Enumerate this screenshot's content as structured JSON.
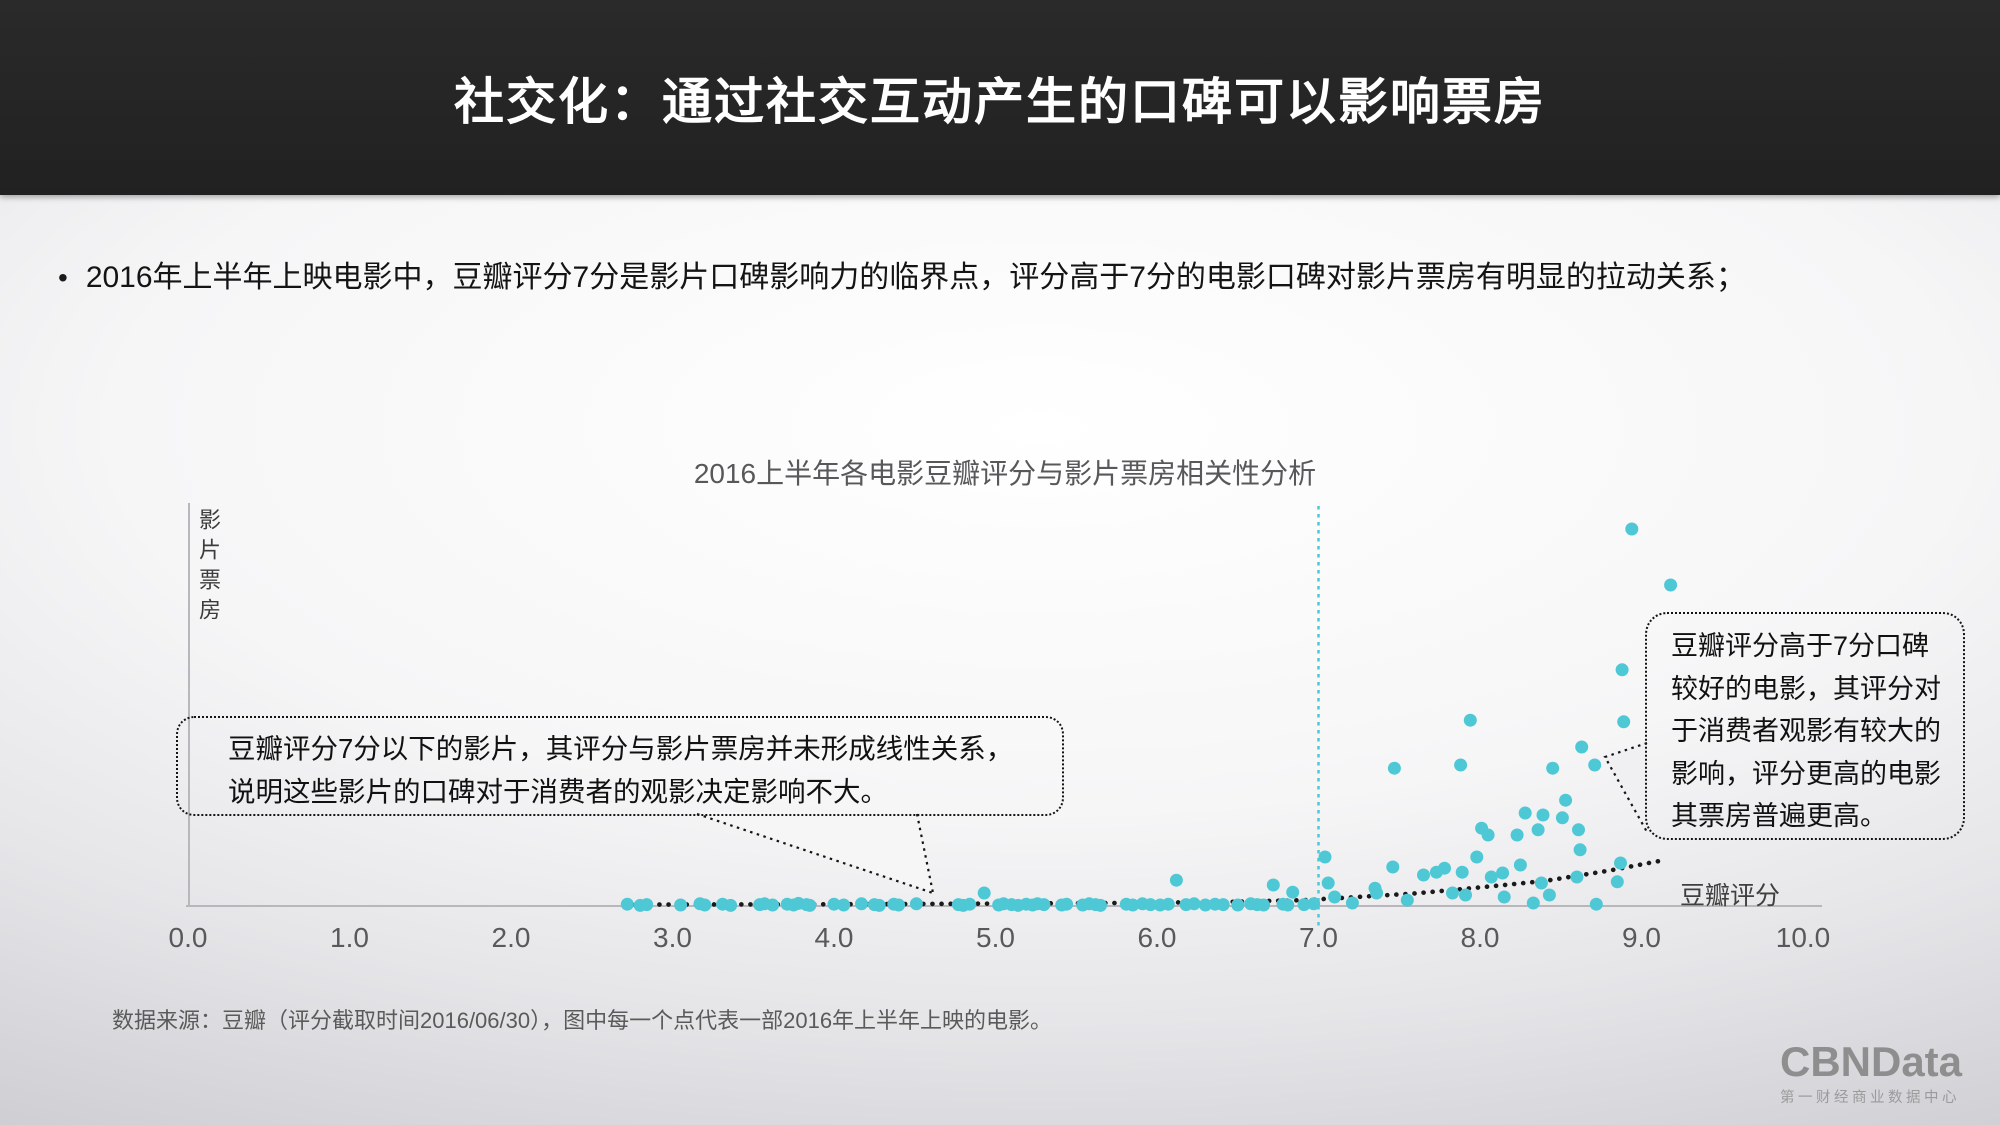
{
  "header": {
    "title": "社交化：通过社交互动产生的口碑可以影响票房",
    "bg_color": "#262626",
    "text_color": "#ffffff"
  },
  "bullet": {
    "marker": "•",
    "text": "2016年上半年上映电影中，豆瓣评分7分是影片口碑影响力的临界点，评分高于7分的电影口碑对影片票房有明显的拉动关系；"
  },
  "chart_data": {
    "type": "scatter",
    "title": "2016上半年各电影豆瓣评分与影片票房相关性分析",
    "xlabel": "豆瓣评分",
    "ylabel": "影片票房",
    "x_ticks": [
      "0.0",
      "1.0",
      "2.0",
      "3.0",
      "4.0",
      "5.0",
      "6.0",
      "7.0",
      "8.0",
      "9.0",
      "10.0"
    ],
    "xlim": [
      0,
      10.4
    ],
    "ylim": [
      0,
      105
    ],
    "grid": false,
    "legend": "none",
    "threshold_x": 7.0,
    "point_color": "#4fc8d5",
    "threshold_color": "#4fc8d5",
    "trend_color": "#1a1a1a",
    "axis_color": "#b8b8bc",
    "points": [
      [
        2.72,
        0.2
      ],
      [
        2.8,
        -0.1
      ],
      [
        2.84,
        0.1
      ],
      [
        3.05,
        0
      ],
      [
        3.17,
        0.3
      ],
      [
        3.2,
        0
      ],
      [
        3.31,
        0.2
      ],
      [
        3.36,
        -0.1
      ],
      [
        3.54,
        0.1
      ],
      [
        3.57,
        0.3
      ],
      [
        3.62,
        0
      ],
      [
        3.71,
        0.2
      ],
      [
        3.75,
        0
      ],
      [
        3.78,
        0.4
      ],
      [
        3.83,
        0.1
      ],
      [
        3.85,
        -0.1
      ],
      [
        4.0,
        0.2
      ],
      [
        4.06,
        0
      ],
      [
        4.17,
        0.3
      ],
      [
        4.25,
        0.1
      ],
      [
        4.28,
        -0.1
      ],
      [
        4.37,
        0.2
      ],
      [
        4.4,
        0
      ],
      [
        4.51,
        0.3
      ],
      [
        4.77,
        0.1
      ],
      [
        4.8,
        -0.1
      ],
      [
        4.84,
        0.2
      ],
      [
        4.93,
        3
      ],
      [
        5.02,
        0
      ],
      [
        5.05,
        0.3
      ],
      [
        5.1,
        0.1
      ],
      [
        5.14,
        -0.1
      ],
      [
        5.19,
        0.2
      ],
      [
        5.23,
        0
      ],
      [
        5.26,
        0.3
      ],
      [
        5.3,
        0.1
      ],
      [
        5.41,
        0
      ],
      [
        5.44,
        0.2
      ],
      [
        5.54,
        0
      ],
      [
        5.58,
        0.3
      ],
      [
        5.62,
        0.1
      ],
      [
        5.65,
        -0.1
      ],
      [
        5.81,
        0.2
      ],
      [
        5.85,
        0
      ],
      [
        5.91,
        0.3
      ],
      [
        5.96,
        0.1
      ],
      [
        6.02,
        0
      ],
      [
        6.07,
        0.2
      ],
      [
        6.12,
        6.2
      ],
      [
        6.18,
        0.1
      ],
      [
        6.23,
        0.3
      ],
      [
        6.3,
        0
      ],
      [
        6.36,
        0.2
      ],
      [
        6.41,
        0.1
      ],
      [
        6.5,
        0
      ],
      [
        6.58,
        0.3
      ],
      [
        6.62,
        0.1
      ],
      [
        6.66,
        0
      ],
      [
        6.72,
        5
      ],
      [
        6.78,
        0.2
      ],
      [
        6.81,
        0
      ],
      [
        6.84,
        3.2
      ],
      [
        6.91,
        0.1
      ],
      [
        6.97,
        0.3
      ],
      [
        7.04,
        12
      ],
      [
        7.06,
        5.5
      ],
      [
        7.1,
        2
      ],
      [
        7.21,
        0.5
      ],
      [
        7.35,
        4.2
      ],
      [
        7.36,
        3
      ],
      [
        7.46,
        9.5
      ],
      [
        7.47,
        34.2
      ],
      [
        7.55,
        1.2
      ],
      [
        7.65,
        7.5
      ],
      [
        7.73,
        8.2
      ],
      [
        7.78,
        9.2
      ],
      [
        7.83,
        3
      ],
      [
        7.88,
        35
      ],
      [
        7.89,
        8.2
      ],
      [
        7.91,
        2.5
      ],
      [
        7.94,
        46.2
      ],
      [
        7.98,
        12
      ],
      [
        8.01,
        19.2
      ],
      [
        8.05,
        17.5
      ],
      [
        8.07,
        7
      ],
      [
        8.14,
        8
      ],
      [
        8.15,
        2
      ],
      [
        8.23,
        17.5
      ],
      [
        8.25,
        10
      ],
      [
        8.28,
        23
      ],
      [
        8.33,
        0.5
      ],
      [
        8.36,
        18.8
      ],
      [
        8.38,
        5.5
      ],
      [
        8.39,
        22.5
      ],
      [
        8.43,
        2.5
      ],
      [
        8.45,
        34.2
      ],
      [
        8.51,
        21.8
      ],
      [
        8.53,
        26.2
      ],
      [
        8.6,
        7
      ],
      [
        8.61,
        18.8
      ],
      [
        8.62,
        13.8
      ],
      [
        8.63,
        39.5
      ],
      [
        8.71,
        35
      ],
      [
        8.72,
        0.2
      ],
      [
        8.85,
        5.8
      ],
      [
        8.87,
        10.5
      ],
      [
        8.88,
        58.8
      ],
      [
        8.89,
        45.8
      ],
      [
        8.94,
        94
      ],
      [
        9.18,
        80
      ]
    ],
    "trend": [
      [
        2.75,
        0.1
      ],
      [
        3.5,
        0.15
      ],
      [
        4.2,
        0.2
      ],
      [
        5.0,
        0.35
      ],
      [
        5.8,
        0.5
      ],
      [
        6.4,
        0.75
      ],
      [
        6.9,
        1.2
      ],
      [
        7.2,
        1.9
      ],
      [
        7.6,
        2.9
      ],
      [
        8.0,
        4.4
      ],
      [
        8.4,
        6.0
      ],
      [
        8.8,
        8.6
      ],
      [
        9.15,
        11.3
      ]
    ]
  },
  "annotations": {
    "left_callout": {
      "line1": "豆瓣评分7分以下的影片，其评分与影片票房并未形成线性关系，",
      "line2": "说明这些影片的口碑对于消费者的观影决定影响不大。"
    },
    "right_callout": {
      "text": "豆瓣评分高于7分口碑较好的电影，其评分对于消费者观影有较大的影响，评分更高的电影其票房普遍更高。"
    }
  },
  "footer": {
    "source": "数据来源：豆瓣（评分截取时间2016/06/30），图中每一个点代表一部2016年上半年上映的电影。"
  },
  "logo": {
    "name": "CBNData",
    "subtitle": "第一财经商业数据中心"
  }
}
